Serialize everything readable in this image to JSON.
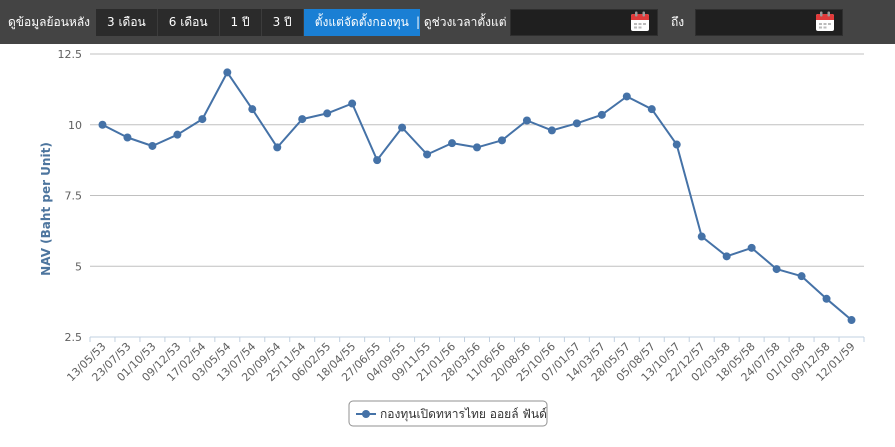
{
  "toolbar": {
    "history_label": "ดูข้อมูลย้อนหลัง",
    "ranges": [
      "3 เดือน",
      "6 เดือน",
      "1 ปี",
      "3 ปี",
      "ตั้งแต่จัดตั้งกองทุน"
    ],
    "active_range": 4,
    "period_label": "| ดูช่วงเวลาตั้งแต่",
    "to_label": "ถึง",
    "from_value": "",
    "to_value": ""
  },
  "colors": {
    "series": "#4572a7",
    "active": "#1a7fd4",
    "toolbar": "#444444"
  },
  "chart_data": {
    "type": "line",
    "title": "",
    "xlabel": "",
    "ylabel": "NAV (Baht per Unit)",
    "ylim": [
      2.5,
      12.5
    ],
    "yticks": [
      2.5,
      5,
      7.5,
      10,
      12.5
    ],
    "ytick_labels": [
      "2.5",
      "5",
      "7.5",
      "10",
      "12.5"
    ],
    "grid": true,
    "legend": "bottom",
    "categories": [
      "13/05/53",
      "23/07/53",
      "01/10/53",
      "09/12/53",
      "17/02/54",
      "03/05/54",
      "13/07/54",
      "20/09/54",
      "25/11/54",
      "06/02/55",
      "18/04/55",
      "27/06/55",
      "04/09/55",
      "09/11/55",
      "21/01/56",
      "28/03/56",
      "11/06/56",
      "20/08/56",
      "25/10/56",
      "07/01/57",
      "14/03/57",
      "28/05/57",
      "05/08/57",
      "13/10/57",
      "22/12/57",
      "02/03/58",
      "18/05/58",
      "24/07/58",
      "01/10/58",
      "09/12/58",
      "12/01/59"
    ],
    "series": [
      {
        "name": "กองทุนเปิดทหารไทย ออยล์ ฟันด์",
        "values": [
          10.0,
          9.55,
          9.25,
          9.65,
          10.2,
          11.85,
          10.55,
          9.2,
          10.2,
          10.4,
          10.75,
          8.75,
          9.9,
          8.95,
          9.35,
          9.2,
          9.45,
          10.15,
          9.8,
          10.05,
          10.35,
          11.0,
          10.55,
          9.3,
          6.05,
          5.35,
          5.65,
          4.9,
          4.65,
          3.85,
          3.1
        ]
      }
    ]
  }
}
